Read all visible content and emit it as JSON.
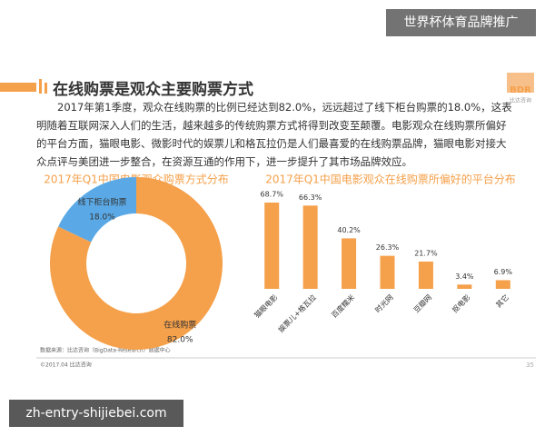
{
  "overlay_label": "世界杯体育品牌推广",
  "title": "在线购票是观众主要购票方式",
  "logo": {
    "abbr": "BDR",
    "name": "比达咨询"
  },
  "paragraph": "2017年第1季度，观众在线购票的比例已经达到82.0%，远远超过了线下柜台购票的18.0%，这表明随着互联网深入人们的生活，越来越多的传统购票方式将得到改变至颠覆。电影观众在线购票所偏好的平台方面，猫眼电影、微影时代的娱票儿和格瓦拉仍是人们最喜爱的在线购票品牌，猫眼电影对接大众点评与美团进一步整合，在资源互通的作用下，进一步提升了其市场品牌效应。",
  "chart_data": [
    {
      "type": "donut",
      "title": "2017年Q1中国电影观众购票方式分布",
      "categories": [
        "线下柜台购票",
        "在线购票"
      ],
      "values": [
        18.0,
        82.0
      ],
      "value_labels": [
        "18.0%",
        "82.0%"
      ],
      "colors": [
        "#5aa9e6",
        "#f5a04a"
      ]
    },
    {
      "type": "bar",
      "title": "2017年Q1中国电影观众在线购票所偏好的平台分布",
      "categories": [
        "猫眼电影",
        "娱票儿+格瓦拉",
        "百度糯米",
        "时光网",
        "豆瓣网",
        "抠电影",
        "其它"
      ],
      "values": [
        68.7,
        66.3,
        40.2,
        26.3,
        21.7,
        3.4,
        6.9
      ],
      "value_labels": [
        "68.7%",
        "66.3%",
        "40.2%",
        "26.3%",
        "21.7%",
        "3.4%",
        "6.9%"
      ],
      "color": "#f5a04a"
    }
  ],
  "source": "数据来源：比达咨询（BigData-Research）数据中心",
  "copyright": "©2017.04 比达咨询",
  "page_number": "35",
  "watermark": "zh-entry-shijiebei.com"
}
